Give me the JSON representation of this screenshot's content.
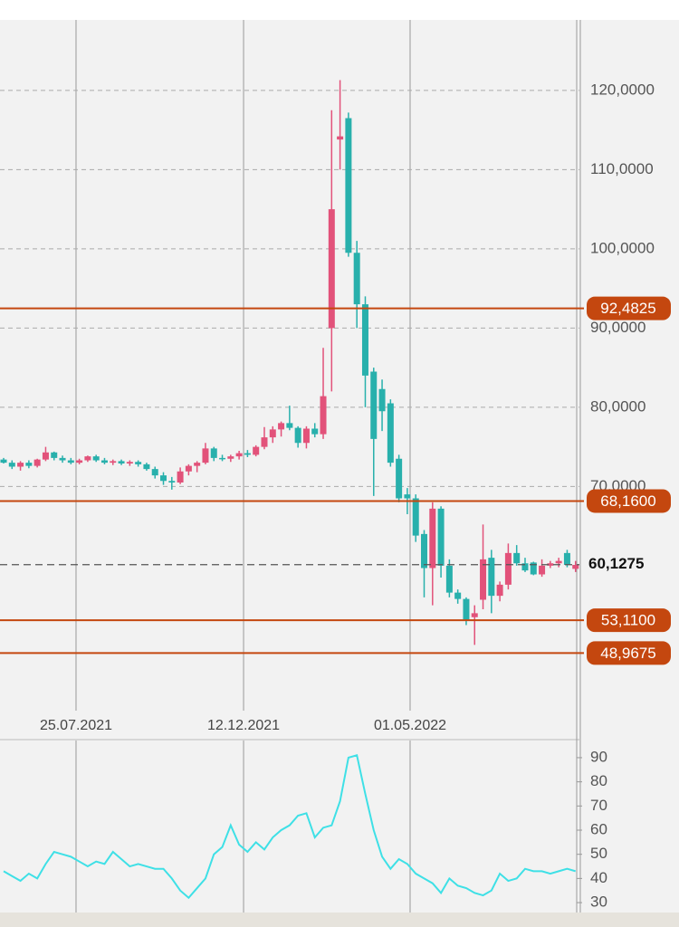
{
  "chart_data": [
    {
      "type": "candlestick",
      "x": [
        0,
        1,
        2,
        3,
        4,
        5,
        6,
        7,
        8,
        9,
        10,
        11,
        12,
        13,
        14,
        15,
        16,
        17,
        18,
        19,
        20,
        21,
        22,
        23,
        24,
        25,
        26,
        27,
        28,
        29,
        30,
        31,
        32,
        33,
        34,
        35,
        36,
        37,
        38,
        39,
        40,
        41,
        42,
        43,
        44,
        45,
        46,
        47,
        48,
        49,
        50,
        51,
        52,
        53,
        54,
        55,
        56,
        57,
        58,
        59,
        60,
        61,
        62,
        63,
        64,
        65,
        66,
        67,
        68
      ],
      "open": [
        73.4,
        73.0,
        72.5,
        73.0,
        72.6,
        73.4,
        74.3,
        73.6,
        73.3,
        73.0,
        73.3,
        73.8,
        73.3,
        73.0,
        73.2,
        72.9,
        73.1,
        72.8,
        72.2,
        71.4,
        70.7,
        70.5,
        71.9,
        72.6,
        73.0,
        74.8,
        73.6,
        73.5,
        73.8,
        74.2,
        74.0,
        75.0,
        76.2,
        77.2,
        78.0,
        77.4,
        75.5,
        77.3,
        76.6,
        90.0,
        113.8,
        116.5,
        99.5,
        93.0,
        84.5,
        82.3,
        80.5,
        73.5,
        69.0,
        68.5,
        64.0,
        59.7,
        67.2,
        60.0,
        56.6,
        55.8,
        53.5,
        55.7,
        61.0,
        56.2,
        57.6,
        61.6,
        60.3,
        60.4,
        58.9,
        60.0,
        60.3,
        61.6,
        59.6
      ],
      "high": [
        73.6,
        73.3,
        73.2,
        73.3,
        73.5,
        75.0,
        74.4,
        73.9,
        73.6,
        73.5,
        73.9,
        74.0,
        73.6,
        73.4,
        73.4,
        73.3,
        73.3,
        73.0,
        72.5,
        71.8,
        71.2,
        72.4,
        72.8,
        73.2,
        75.5,
        75.0,
        74.0,
        74.0,
        74.5,
        74.6,
        75.2,
        77.5,
        77.6,
        78.2,
        80.2,
        77.6,
        77.6,
        78.0,
        87.5,
        117.5,
        121.3,
        117.2,
        101.0,
        94.0,
        85.0,
        83.5,
        81.0,
        74.0,
        69.8,
        69.0,
        64.5,
        68.0,
        67.5,
        60.8,
        57.0,
        56.0,
        55.0,
        65.2,
        62.0,
        58.0,
        62.8,
        62.6,
        61.0,
        60.5,
        60.8,
        60.6,
        61.0,
        62.0,
        60.6
      ],
      "low": [
        72.9,
        72.2,
        72.0,
        72.3,
        72.4,
        73.2,
        73.3,
        73.0,
        72.8,
        72.8,
        73.1,
        73.1,
        72.8,
        72.7,
        72.7,
        72.6,
        72.5,
        72.0,
        71.0,
        70.2,
        69.6,
        70.3,
        71.4,
        71.8,
        72.8,
        73.2,
        73.2,
        73.1,
        73.4,
        73.7,
        73.8,
        74.7,
        75.5,
        76.3,
        77.1,
        74.9,
        74.8,
        76.2,
        76.0,
        82.0,
        110.0,
        99.0,
        90.0,
        80.0,
        68.8,
        77.0,
        72.5,
        68.0,
        66.5,
        63.0,
        56.0,
        55.0,
        58.5,
        56.0,
        55.2,
        52.5,
        50.0,
        54.5,
        54.0,
        55.5,
        57.0,
        60.0,
        59.2,
        58.8,
        58.6,
        59.7,
        59.8,
        59.8,
        59.2
      ],
      "close": [
        73.0,
        72.5,
        73.0,
        72.6,
        73.4,
        74.3,
        73.6,
        73.3,
        73.0,
        73.3,
        73.8,
        73.3,
        73.0,
        73.2,
        72.9,
        73.1,
        72.8,
        72.2,
        71.4,
        70.7,
        70.5,
        71.9,
        72.6,
        73.0,
        74.8,
        73.6,
        73.5,
        73.8,
        74.2,
        74.0,
        75.0,
        76.2,
        77.2,
        78.0,
        77.4,
        75.5,
        77.3,
        76.6,
        81.4,
        105.0,
        114.2,
        99.5,
        93.0,
        84.0,
        76.0,
        79.5,
        73.0,
        68.5,
        68.5,
        63.8,
        59.7,
        67.2,
        60.0,
        56.6,
        55.8,
        53.2,
        54.0,
        60.8,
        56.2,
        57.6,
        61.6,
        60.3,
        59.4,
        58.9,
        60.0,
        60.3,
        60.6,
        60.1,
        60.1
      ],
      "up_color": "#e2527a",
      "down_color": "#28b0ac",
      "xlim": [
        -0.43,
        68.46
      ],
      "xticks": [
        {
          "value": 8.61,
          "label": "25.07.2021"
        },
        {
          "value": 28.53,
          "label": "12.12.2021"
        },
        {
          "value": 48.33,
          "label": "01.05.2022"
        }
      ],
      "ylim": [
        41.7,
        128.9
      ],
      "yticks": [
        {
          "value": 70,
          "label": "70,0000"
        },
        {
          "value": 80,
          "label": "80,0000"
        },
        {
          "value": 90,
          "label": "90,0000"
        },
        {
          "value": 100,
          "label": "100,0000"
        },
        {
          "value": 110,
          "label": "110,0000"
        },
        {
          "value": 120,
          "label": "120,0000"
        }
      ],
      "levels": [
        {
          "value": 92.4825,
          "label": "92,4825"
        },
        {
          "value": 68.16,
          "label": "68,1600"
        },
        {
          "value": 53.11,
          "label": "53,1100"
        },
        {
          "value": 48.9675,
          "label": "48,9675"
        }
      ],
      "level_color": "#c4470f",
      "last_price": {
        "value": 60.1275,
        "label": "60,1275"
      },
      "grid": true
    },
    {
      "type": "line",
      "x": [
        0,
        1,
        2,
        3,
        4,
        5,
        6,
        7,
        8,
        9,
        10,
        11,
        12,
        13,
        14,
        15,
        16,
        17,
        18,
        19,
        20,
        21,
        22,
        23,
        24,
        25,
        26,
        27,
        28,
        29,
        30,
        31,
        32,
        33,
        34,
        35,
        36,
        37,
        38,
        39,
        40,
        41,
        42,
        43,
        44,
        45,
        46,
        47,
        48,
        49,
        50,
        51,
        52,
        53,
        54,
        55,
        56,
        57,
        58,
        59,
        60,
        61,
        62,
        63,
        64,
        65,
        66,
        67,
        68
      ],
      "values": [
        43,
        41,
        39,
        42,
        40,
        46,
        51,
        50,
        49,
        47,
        45,
        47,
        46,
        51,
        48,
        45,
        46,
        45,
        44,
        44,
        40,
        35,
        32,
        36,
        40,
        50,
        53,
        62,
        54,
        51,
        55,
        52,
        57,
        60,
        62,
        66,
        67,
        57,
        61,
        62,
        72,
        90,
        91,
        75,
        60,
        49,
        44,
        48,
        46,
        42,
        40,
        38,
        34,
        40,
        37,
        36,
        34,
        33,
        35,
        42,
        39,
        40,
        44,
        43,
        43,
        42,
        43,
        44,
        43
      ],
      "color": "#3ee0e6",
      "xlim": [
        -0.43,
        68.46
      ],
      "xticks": [
        8.61,
        28.53,
        48.33
      ],
      "ylim": [
        25.9,
        97.1
      ],
      "yticks": [
        30,
        40,
        50,
        60,
        70,
        80,
        90
      ]
    }
  ]
}
